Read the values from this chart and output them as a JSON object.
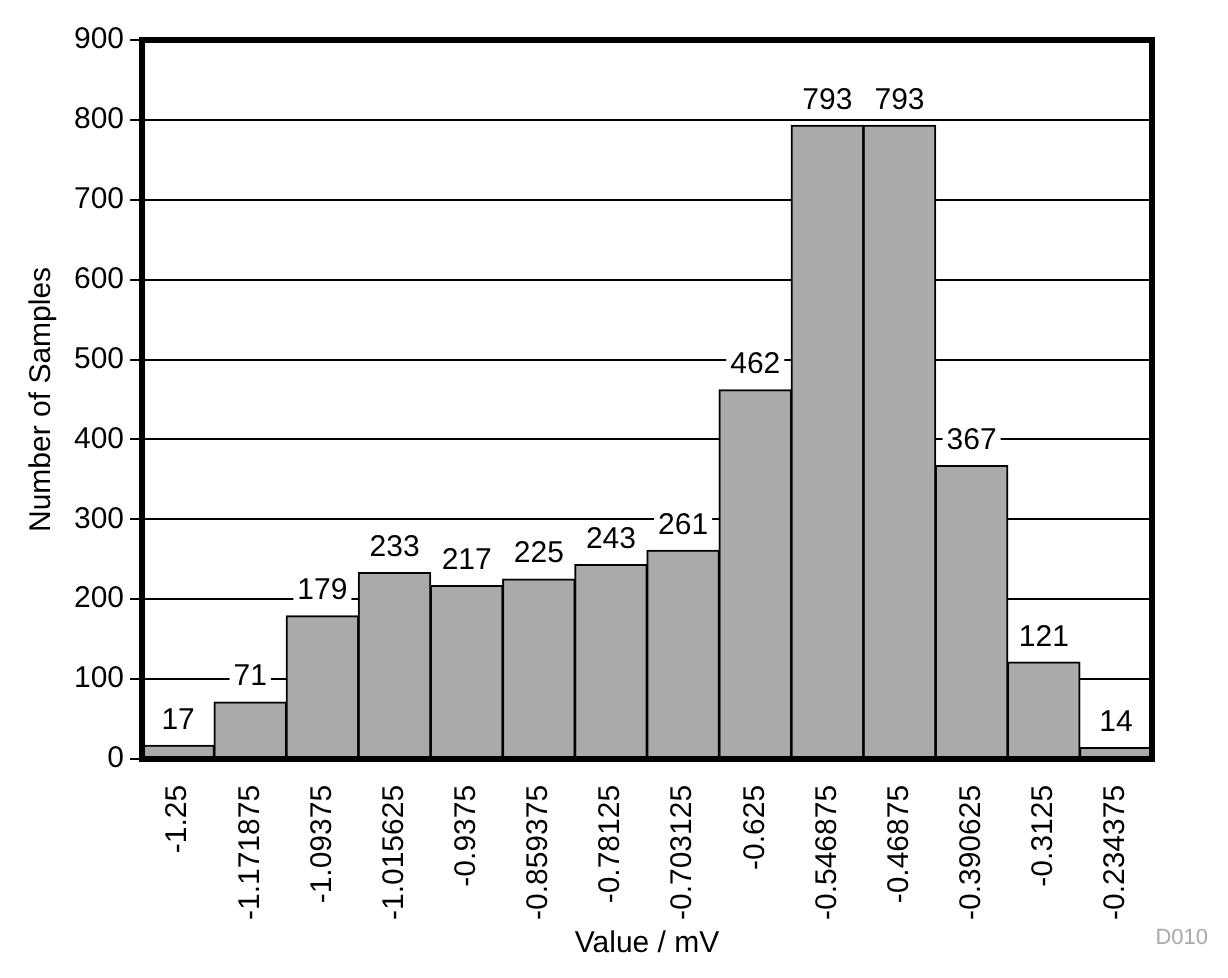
{
  "chart_data": {
    "type": "bar",
    "xlabel": "Value / mV",
    "ylabel": "Number of Samples",
    "categories": [
      "-1.25",
      "-1.171875",
      "-1.09375",
      "-1.015625",
      "-0.9375",
      "-0.859375",
      "-0.78125",
      "-0.703125",
      "-0.625",
      "-0.546875",
      "-0.46875",
      "-0.390625",
      "-0.3125",
      "-0.234375"
    ],
    "values": [
      17,
      71,
      179,
      233,
      217,
      225,
      243,
      261,
      462,
      793,
      793,
      367,
      121,
      14
    ],
    "color": "#aaaaaa",
    "ylim": [
      0,
      900
    ],
    "yticks": [
      0,
      100,
      200,
      300,
      400,
      500,
      600,
      700,
      800,
      900
    ],
    "grid": "y",
    "data_labels": true,
    "legend": false,
    "annotations": [
      "D010"
    ]
  }
}
